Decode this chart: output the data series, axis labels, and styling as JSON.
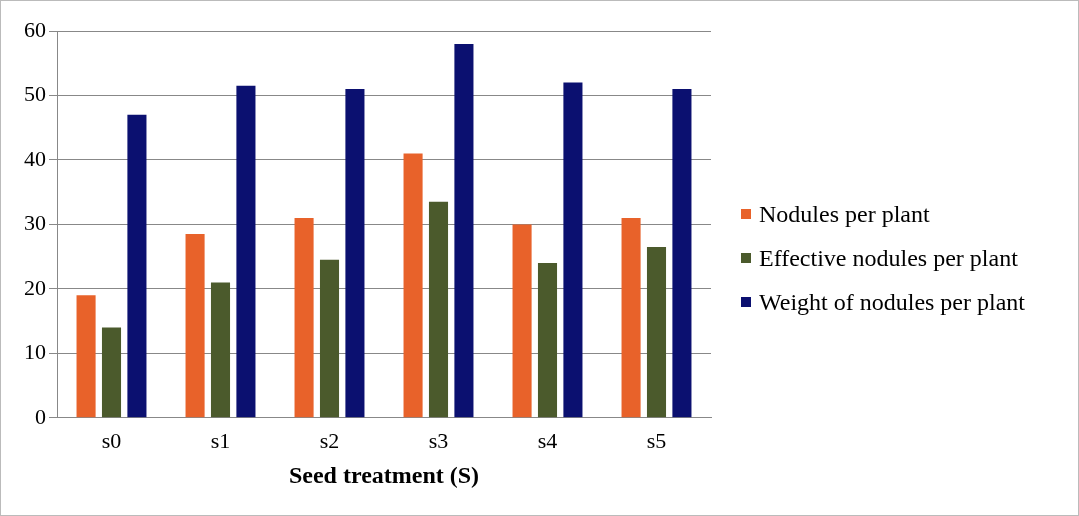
{
  "chart_data": {
    "type": "bar",
    "xlabel": "Seed treatment (S)",
    "categories": [
      "s0",
      "s1",
      "s2",
      "s3",
      "s4",
      "s5"
    ],
    "series": [
      {
        "name": "Nodules per plant",
        "color": "#e8622a",
        "values": [
          19,
          28.5,
          31,
          41,
          30,
          31
        ]
      },
      {
        "name": "Effective nodules per plant",
        "color": "#4b5a2c",
        "values": [
          14,
          21,
          24.5,
          33.5,
          24,
          26.5
        ]
      },
      {
        "name": "Weight of nodules per plant",
        "color": "#0b1070",
        "values": [
          47,
          51.5,
          51,
          58,
          52,
          51
        ]
      }
    ],
    "ylim": [
      0,
      60
    ],
    "yticks": [
      0,
      10,
      20,
      30,
      40,
      50,
      60
    ],
    "grid": "y",
    "legend": "right"
  }
}
